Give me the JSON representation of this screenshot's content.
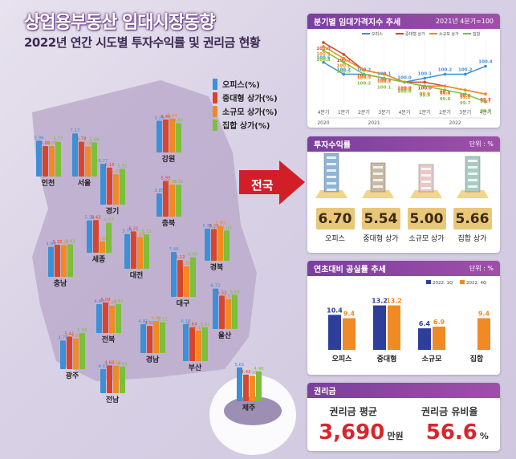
{
  "title": "상업용부동산 임대시장동향",
  "subtitle": "2022년 연간 시도별 투자수익률 및 권리금 현황",
  "legend": [
    "오피스(%)",
    "중대형 상가(%)",
    "소규모 상가(%)",
    "집합 상가(%)"
  ],
  "colors": {
    "office": "#3d8fd6",
    "large": "#d8452e",
    "small": "#f08a24",
    "collective": "#7bbf3c",
    "purple": "#7a3f9e",
    "map": "#bcaccd"
  },
  "national_label": "전국",
  "chart_data": [
    {
      "type": "bar",
      "series": [
        "오피스",
        "중대형 상가",
        "소규모 상가",
        "집합 상가"
      ],
      "regions": [
        {
          "name": "인천",
          "values": [
            5.96,
            5.06,
            5.06,
            5.77
          ]
        },
        {
          "name": "서울",
          "values": [
            7.17,
            5.78,
            5.0,
            5.68
          ]
        },
        {
          "name": "강원",
          "values": [
            5.26,
            5.46,
            5.64,
            4.87
          ]
        },
        {
          "name": "경기",
          "values": [
            6.77,
            6.15,
            5.05,
            5.92
          ]
        },
        {
          "name": "충북",
          "values": [
            3.85,
            5.95,
            5.35,
            5.31
          ]
        },
        {
          "name": "세종",
          "values": [
            5.38,
            5.43,
            1.9,
            4.97
          ]
        },
        {
          "name": "충남",
          "values": [
            4.99,
            5.32,
            5.26,
            5.42
          ]
        },
        {
          "name": "대전",
          "values": [
            5.79,
            6.21,
            5.28,
            5.73
          ]
        },
        {
          "name": "경북",
          "values": [
            5.35,
            5.29,
            5.8,
            5.03
          ]
        },
        {
          "name": "대구",
          "values": [
            7.46,
            6.12,
            5.09,
            6.6
          ]
        },
        {
          "name": "울산",
          "values": [
            6.72,
            5.53,
            4.97,
            5.69
          ]
        },
        {
          "name": "전북",
          "values": [
            4.8,
            5.09,
            4.53,
            4.82
          ]
        },
        {
          "name": "광주",
          "values": [
            4.75,
            5.41,
            5.09,
            5.98
          ]
        },
        {
          "name": "경남",
          "values": [
            4.81,
            4.52,
            5.32,
            5.12
          ]
        },
        {
          "name": "부산",
          "values": [
            6.16,
            5.64,
            5.1,
            5.62
          ]
        },
        {
          "name": "전남",
          "values": [
            4.01,
            4.62,
            4.59,
            4.43
          ]
        },
        {
          "name": "제주",
          "values": [
            5.61,
            4.42,
            4.26,
            4.96
          ]
        }
      ]
    },
    {
      "type": "line",
      "title": "분기별 임대가격지수 추세",
      "note": "2021년 4분기=100",
      "x": [
        "4분기",
        "1분기",
        "2분기",
        "3분기",
        "4분기",
        "1분기",
        "2분기",
        "3분기",
        "4분기"
      ],
      "years": [
        "2020",
        "2021",
        "2022"
      ],
      "series": [
        {
          "name": "오피스",
          "values": [
            100.5,
            100.2,
            100.2,
            100.1,
            100.0,
            100.1,
            100.2,
            100.2,
            100.4
          ]
        },
        {
          "name": "중대형 상가",
          "values": [
            101.0,
            100.7,
            100.3,
            100.2,
            100.0,
            100.0,
            99.9,
            99.8,
            99.7
          ]
        },
        {
          "name": "소규모 상가",
          "values": [
            100.9,
            100.6,
            100.3,
            100.2,
            100.0,
            99.9,
            99.9,
            99.8,
            99.7
          ]
        },
        {
          "name": "집합",
          "values": [
            100.8,
            100.5,
            100.2,
            100.1,
            100.0,
            99.9,
            99.8,
            99.7,
            99.5
          ]
        }
      ]
    },
    {
      "type": "bar",
      "title": "투자수익률",
      "unit": "단위 : %",
      "categories": [
        "오피스",
        "중대형 상가",
        "소규모 상가",
        "집합 상가"
      ],
      "values": [
        "6.70",
        "5.54",
        "5.00",
        "5.66"
      ]
    },
    {
      "type": "bar",
      "title": "연초대비 공실률 추세",
      "unit": "단위 : %",
      "categories": [
        "오피스",
        "중대형",
        "소규모",
        "집합"
      ],
      "series": [
        {
          "name": "2022. 1Q",
          "values": [
            10.4,
            13.2,
            6.4,
            null
          ]
        },
        {
          "name": "2022. 4Q",
          "values": [
            9.4,
            13.2,
            6.9,
            9.4
          ]
        }
      ]
    }
  ],
  "premium": {
    "title": "권리금",
    "avg_label": "권리금 평균",
    "avg_value": "3,690",
    "avg_unit": "만원",
    "rate_label": "권리금 유비율",
    "rate_value": "56.6",
    "rate_unit": "%"
  }
}
